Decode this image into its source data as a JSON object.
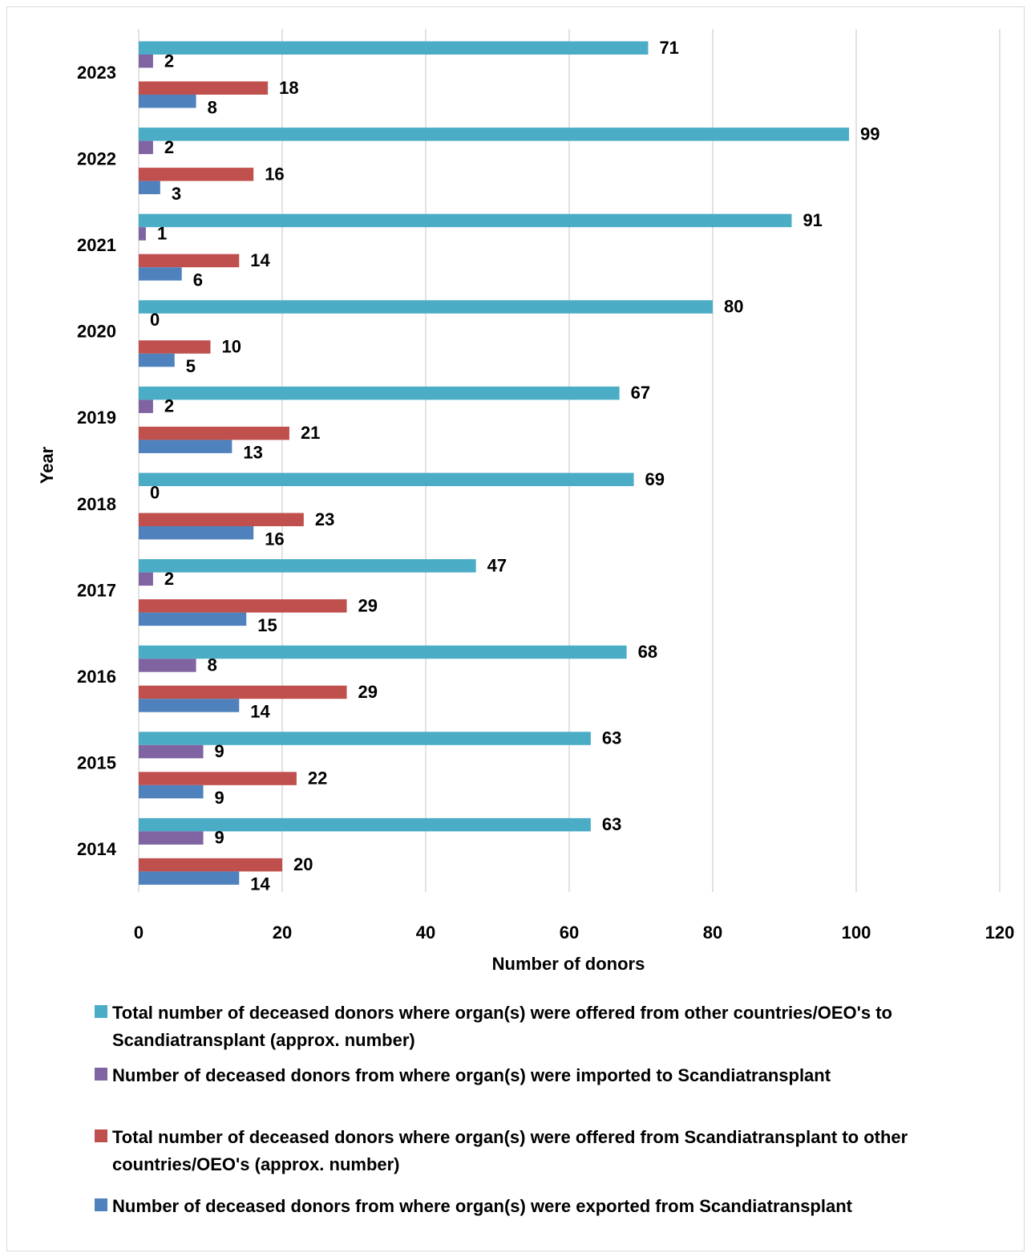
{
  "chart_data": {
    "type": "bar",
    "orientation": "horizontal",
    "title": "",
    "xlabel": "Number of donors",
    "ylabel": "Year",
    "xlim": [
      0,
      120
    ],
    "xticks": [
      "0",
      "20",
      "40",
      "60",
      "80",
      "100",
      "120"
    ],
    "categories": [
      "2023",
      "2022",
      "2021",
      "2020",
      "2019",
      "2018",
      "2017",
      "2016",
      "2015",
      "2014"
    ],
    "grid": "vertical",
    "legend_position": "bottom",
    "series": [
      {
        "name": "Total number of deceased donors where organ(s) were offered from other countries/OEO's to Scandiatransplant (approx. number)",
        "color": "#4bacc6",
        "values": [
          71,
          99,
          91,
          80,
          67,
          69,
          47,
          68,
          63,
          63
        ]
      },
      {
        "name": "Number of deceased donors from where organ(s) were imported to Scandiatransplant",
        "color": "#8064a2",
        "values": [
          2,
          2,
          1,
          0,
          2,
          0,
          2,
          8,
          9,
          9
        ]
      },
      {
        "name": "Total number of deceased donors where organ(s) were offered from Scandiatransplant to other countries/OEO's (approx. number)",
        "color": "#c0504d",
        "values": [
          18,
          16,
          14,
          10,
          21,
          23,
          29,
          29,
          22,
          20
        ]
      },
      {
        "name": "Number of deceased donors from where organ(s) were exported from Scandiatransplant",
        "color": "#4f81bd",
        "values": [
          8,
          3,
          6,
          5,
          13,
          16,
          15,
          14,
          9,
          14
        ]
      }
    ]
  }
}
